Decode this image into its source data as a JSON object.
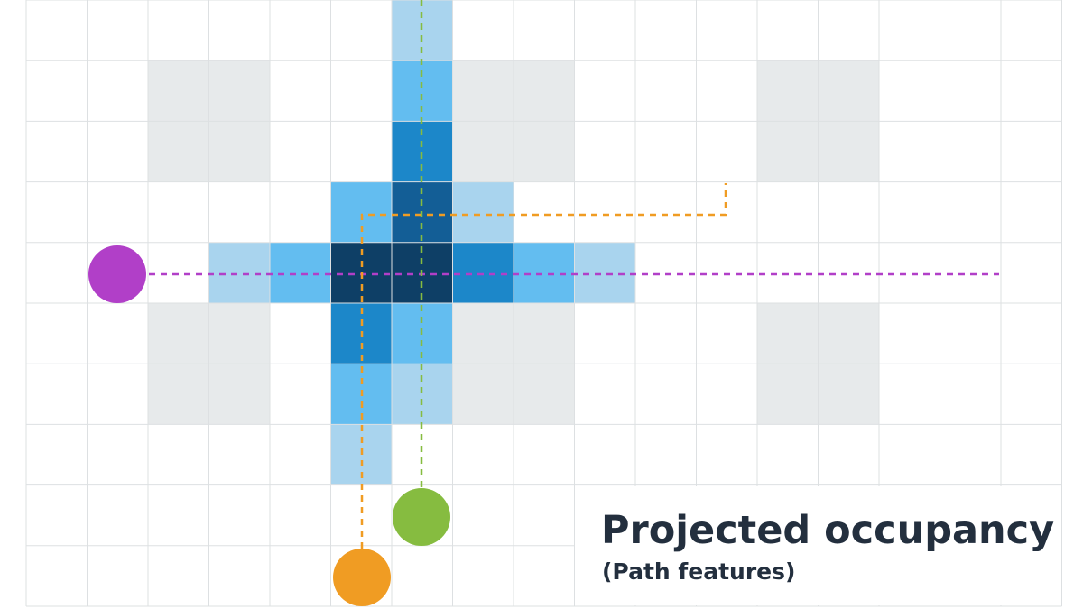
{
  "title": "Projected occupancy",
  "subtitle": "(Path features)"
}
